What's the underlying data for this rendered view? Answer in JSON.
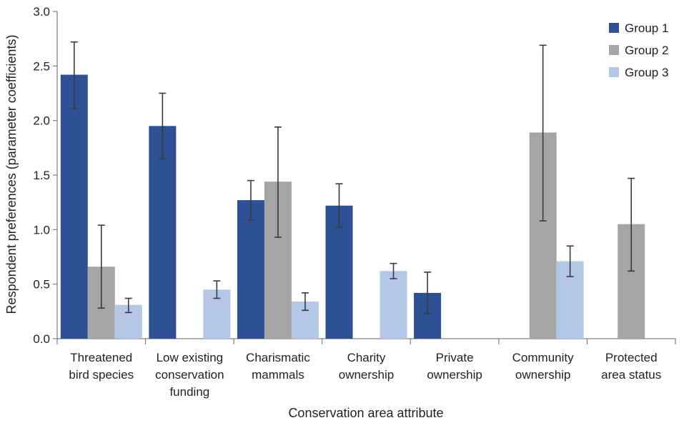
{
  "chart_data": {
    "type": "bar",
    "xlabel": "Conservation area attribute",
    "ylabel": "Respondent preferences (parameter coefficients)",
    "ylim": [
      0,
      3.0
    ],
    "yticks": [
      "0.0",
      "0.5",
      "1.0",
      "1.5",
      "2.0",
      "2.5",
      "3.0"
    ],
    "grid": false,
    "legend_position": "top-right",
    "categories": [
      [
        "Threatened",
        "bird species"
      ],
      [
        "Low existing",
        "conservation",
        "funding"
      ],
      [
        "Charismatic",
        "mammals"
      ],
      [
        "Charity",
        "ownership"
      ],
      [
        "Private",
        "ownership"
      ],
      [
        "Community",
        "ownership"
      ],
      [
        "Protected",
        "area status"
      ]
    ],
    "series": [
      {
        "name": "Group 1",
        "color": "#2e5195",
        "values": [
          2.42,
          1.95,
          1.27,
          1.22,
          0.42,
          null,
          null
        ],
        "err_low": [
          2.11,
          1.65,
          1.09,
          1.02,
          0.23,
          null,
          null
        ],
        "err_high": [
          2.72,
          2.25,
          1.45,
          1.42,
          0.61,
          null,
          null
        ]
      },
      {
        "name": "Group 2",
        "color": "#a5a5a5",
        "values": [
          0.66,
          null,
          1.44,
          null,
          null,
          1.89,
          1.05
        ],
        "err_low": [
          0.28,
          null,
          0.93,
          null,
          null,
          1.08,
          0.62
        ],
        "err_high": [
          1.04,
          null,
          1.94,
          null,
          null,
          2.69,
          1.47
        ]
      },
      {
        "name": "Group 3",
        "color": "#b4c7e7",
        "values": [
          0.31,
          0.45,
          0.34,
          0.62,
          null,
          0.71,
          null
        ],
        "err_low": [
          0.24,
          0.37,
          0.26,
          0.55,
          null,
          0.57,
          null
        ],
        "err_high": [
          0.37,
          0.53,
          0.42,
          0.69,
          null,
          0.85,
          null
        ]
      }
    ]
  }
}
